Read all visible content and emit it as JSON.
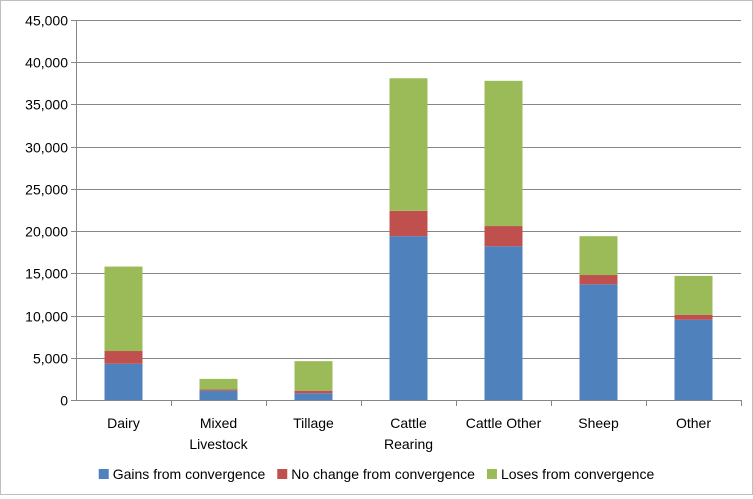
{
  "chart_data": {
    "type": "bar",
    "stacked": true,
    "title": "",
    "xlabel": "",
    "ylabel": "",
    "ylim": [
      0,
      45000
    ],
    "yticks": [
      "0",
      "5,000",
      "10,000",
      "15,000",
      "20,000",
      "25,000",
      "30,000",
      "35,000",
      "40,000",
      "45,000"
    ],
    "ytick_values": [
      0,
      5000,
      10000,
      15000,
      20000,
      25000,
      30000,
      35000,
      40000,
      45000
    ],
    "grid": true,
    "legend_position": "bottom",
    "categories": [
      [
        "Dairy"
      ],
      [
        "Mixed",
        "Livestock"
      ],
      [
        "Tillage"
      ],
      [
        "Cattle",
        "Rearing"
      ],
      [
        "Cattle Other"
      ],
      [
        "Sheep"
      ],
      [
        "Other"
      ]
    ],
    "series": [
      {
        "name": "Gains from convergence",
        "color": "#4f81bd",
        "values": [
          4300,
          1100,
          800,
          19400,
          18200,
          13700,
          9500
        ]
      },
      {
        "name": "No change from convergence",
        "color": "#c0504d",
        "values": [
          1500,
          150,
          300,
          3000,
          2400,
          1100,
          600
        ]
      },
      {
        "name": "Loses from convergence",
        "color": "#9bbb59",
        "values": [
          10000,
          1250,
          3500,
          15700,
          17200,
          4600,
          4600
        ]
      }
    ]
  }
}
